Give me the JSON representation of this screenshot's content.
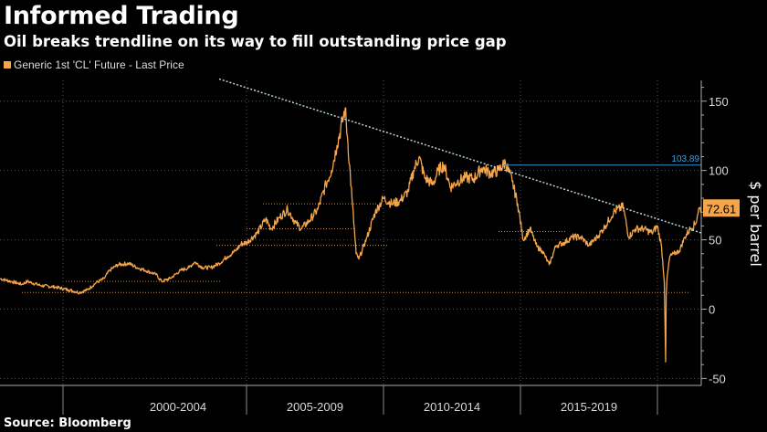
{
  "chart_data": {
    "type": "line",
    "title": "Informed Trading",
    "subtitle": "Oil breaks trendline on its way to fill outstanding price gap",
    "source": "Source: Bloomberg",
    "legend": "Generic 1st 'CL' Future - Last Price",
    "ylabel": "$ per barrel",
    "ylim": [
      -55,
      165
    ],
    "xlim": [
      1996.0,
      2021.6
    ],
    "yticks": [
      -50,
      0,
      50,
      100,
      150
    ],
    "xtick_labels": [
      "2000-2004",
      "2005-2009",
      "2010-2014",
      "2015-2019"
    ],
    "xtick_label_centers": [
      2002.5,
      2007.5,
      2012.5,
      2017.5
    ],
    "period_dividers": [
      1998.3,
      2005.0,
      2010.0,
      2015.0,
      2020.0
    ],
    "last_price": 72.61,
    "last_price_label": "72.61",
    "resistance_level": 103.89,
    "resistance_label": "103.89",
    "trendline": {
      "x": [
        2004.0,
        2021.6
      ],
      "y": [
        166,
        55
      ]
    },
    "series": [
      {
        "name": "Generic 1st 'CL' Future - Last Price",
        "x": [
          1996.0,
          1996.4,
          1996.8,
          1997.0,
          1997.5,
          1998.0,
          1998.5,
          1998.9,
          1999.2,
          1999.5,
          1999.8,
          2000.0,
          2000.3,
          2000.7,
          2001.0,
          2001.3,
          2001.7,
          2001.9,
          2002.2,
          2002.6,
          2002.9,
          2003.1,
          2003.4,
          2003.7,
          2004.0,
          2004.3,
          2004.6,
          2004.8,
          2005.0,
          2005.4,
          2005.7,
          2005.9,
          2006.2,
          2006.5,
          2006.8,
          2007.0,
          2007.3,
          2007.6,
          2007.9,
          2008.1,
          2008.3,
          2008.5,
          2008.6,
          2008.7,
          2008.85,
          2009.0,
          2009.1,
          2009.4,
          2009.7,
          2010.0,
          2010.3,
          2010.6,
          2010.9,
          2011.1,
          2011.3,
          2011.5,
          2011.8,
          2012.0,
          2012.2,
          2012.45,
          2012.7,
          2013.0,
          2013.3,
          2013.6,
          2013.9,
          2014.2,
          2014.45,
          2014.7,
          2014.9,
          2015.1,
          2015.35,
          2015.6,
          2015.8,
          2016.05,
          2016.3,
          2016.6,
          2016.9,
          2017.2,
          2017.5,
          2017.8,
          2018.1,
          2018.4,
          2018.75,
          2018.95,
          2019.2,
          2019.5,
          2019.8,
          2020.0,
          2020.15,
          2020.25,
          2020.3,
          2020.32,
          2020.35,
          2020.45,
          2020.6,
          2020.8,
          2021.0,
          2021.2,
          2021.4,
          2021.5,
          2021.6
        ],
        "values": [
          22,
          20,
          18,
          20,
          17,
          16,
          14,
          12,
          14,
          19,
          22,
          28,
          32,
          33,
          30,
          28,
          25,
          20,
          22,
          28,
          30,
          34,
          30,
          30,
          33,
          38,
          42,
          47,
          48,
          55,
          65,
          58,
          66,
          72,
          62,
          58,
          64,
          72,
          90,
          100,
          118,
          135,
          145,
          120,
          80,
          40,
          36,
          52,
          70,
          80,
          76,
          78,
          85,
          100,
          110,
          95,
          90,
          100,
          104,
          88,
          92,
          95,
          94,
          102,
          98,
          100,
          106,
          92,
          76,
          50,
          58,
          45,
          42,
          32,
          46,
          48,
          52,
          52,
          46,
          52,
          60,
          70,
          74,
          52,
          58,
          58,
          55,
          60,
          45,
          20,
          -38,
          10,
          22,
          38,
          40,
          42,
          52,
          58,
          62,
          72,
          72.61
        ]
      }
    ]
  }
}
